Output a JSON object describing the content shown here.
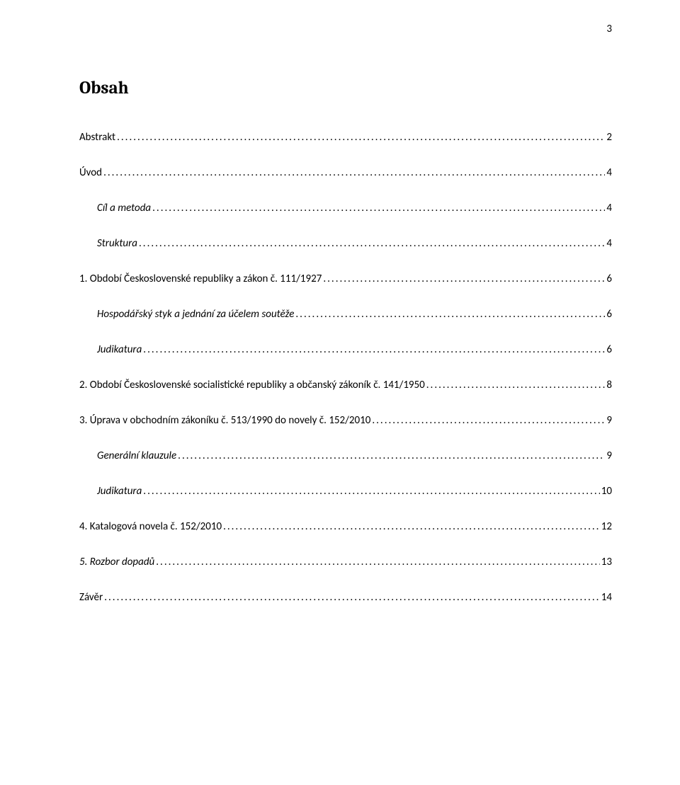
{
  "page_number_top": "3",
  "title": "Obsah",
  "toc": [
    {
      "label": "Abstrakt",
      "page": "2",
      "indent": 0,
      "italic": false
    },
    {
      "label": "Úvod",
      "page": "4",
      "indent": 0,
      "italic": false
    },
    {
      "label": "Cíl a metoda",
      "page": "4",
      "indent": 1,
      "italic": true
    },
    {
      "label": "Struktura",
      "page": "4",
      "indent": 1,
      "italic": true
    },
    {
      "label": "1.   Období Československé republiky a zákon č. 111/1927",
      "page": "6",
      "indent": 0,
      "italic": false
    },
    {
      "label": "Hospodářský styk a jednání za účelem soutěže",
      "page": "6",
      "indent": 1,
      "italic": true
    },
    {
      "label": "Judikatura",
      "page": "6",
      "indent": 1,
      "italic": true
    },
    {
      "label": "2.   Období Československé socialistické republiky a občanský zákoník č. 141/1950",
      "page": "8",
      "indent": 0,
      "italic": false
    },
    {
      "label": "3.   Úprava v obchodním zákoníku č. 513/1990 do novely č. 152/2010",
      "page": "9",
      "indent": 0,
      "italic": false
    },
    {
      "label": "Generální klauzule",
      "page": "9",
      "indent": 1,
      "italic": true
    },
    {
      "label": "Judikatura",
      "page": "10",
      "indent": 1,
      "italic": true
    },
    {
      "label": "4.   Katalogová novela č. 152/2010",
      "page": "12",
      "indent": 0,
      "italic": false
    },
    {
      "label": "5.   Rozbor dopadů",
      "page": "13",
      "indent": 0,
      "italic": true
    },
    {
      "label": "Závěr",
      "page": "14",
      "indent": 0,
      "italic": false
    }
  ],
  "colors": {
    "background": "#ffffff",
    "text": "#000000"
  }
}
